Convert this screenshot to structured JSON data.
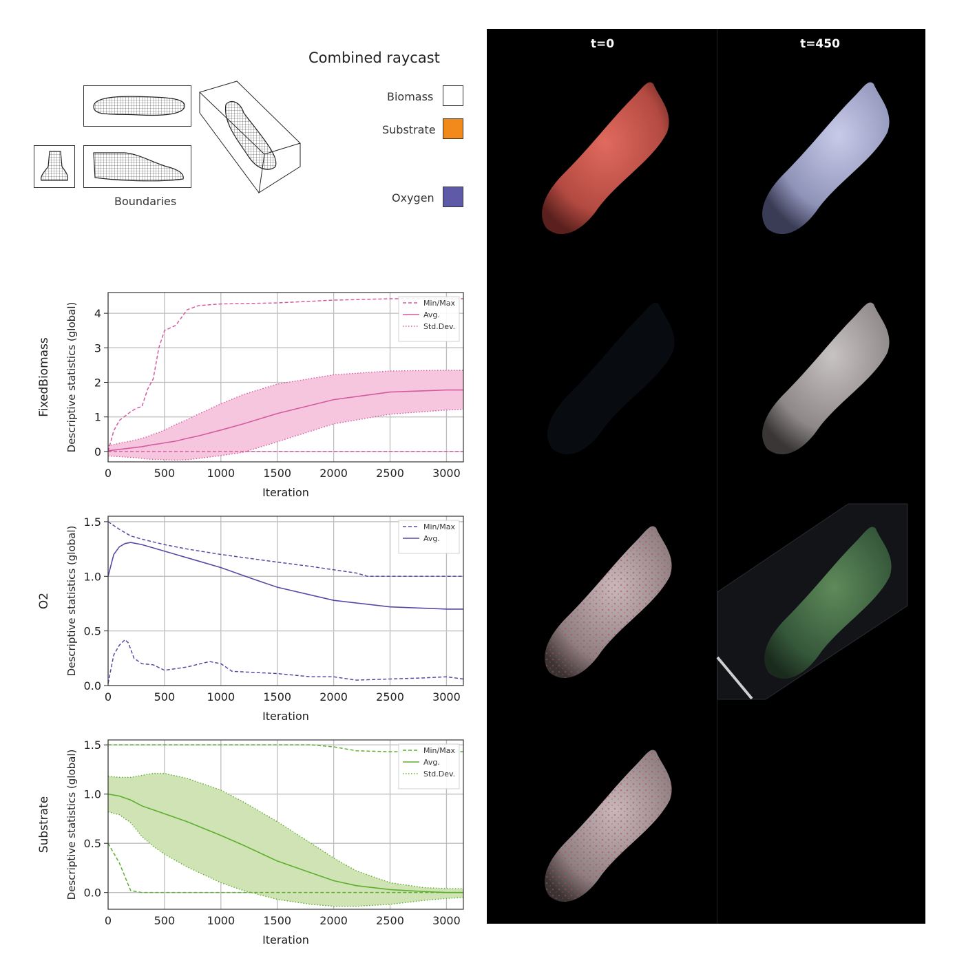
{
  "raycast": {
    "title": "Combined raycast",
    "legend": [
      {
        "label": "Biomass",
        "color": "#ffffff"
      },
      {
        "label": "Substrate",
        "color": "#f28a1b"
      },
      {
        "label": "Oxygen",
        "color": "#5f5aa8"
      }
    ]
  },
  "boundaries": {
    "label": "Boundaries"
  },
  "render_columns": [
    "t=0",
    "t=450"
  ],
  "chart_data": [
    {
      "type": "line",
      "name": "biomass",
      "title": "FixedBiomass",
      "ylabel": "Descriptive statistics (global)",
      "xlabel": "Iteration",
      "xlim": [
        0,
        3150
      ],
      "ylim": [
        -0.3,
        4.6
      ],
      "xticks": [
        0,
        500,
        1000,
        1500,
        2000,
        2500,
        3000
      ],
      "yticks": [
        0,
        1,
        2,
        3,
        4
      ],
      "yticklabels": [
        "0",
        "1",
        "2",
        "3",
        "4"
      ],
      "color": "#d45aa0",
      "fill": "#f6c6de",
      "grid": true,
      "legend_position": "top-right",
      "legend": [
        "Min/Max",
        "Avg.",
        "Std.Dev."
      ],
      "x": [
        0,
        50,
        100,
        200,
        250,
        300,
        350,
        400,
        450,
        500,
        600,
        700,
        800,
        1000,
        1200,
        1500,
        2000,
        2500,
        3000,
        3150
      ],
      "max": [
        0.0,
        0.6,
        0.9,
        1.15,
        1.25,
        1.3,
        1.8,
        2.1,
        3.0,
        3.5,
        3.65,
        4.1,
        4.22,
        4.27,
        4.28,
        4.3,
        4.38,
        4.42,
        4.42,
        4.42
      ],
      "min": [
        0.0,
        0.0,
        0.0,
        0.0,
        0.0,
        0.0,
        0.0,
        0.0,
        0.0,
        0.0,
        0.0,
        0.0,
        0.0,
        0.0,
        0.0,
        0.0,
        0.0,
        0.0,
        0.0,
        0.0
      ],
      "avg": [
        0.02,
        0.04,
        0.06,
        0.1,
        0.12,
        0.14,
        0.17,
        0.2,
        0.22,
        0.25,
        0.3,
        0.38,
        0.45,
        0.62,
        0.8,
        1.1,
        1.5,
        1.72,
        1.78,
        1.78
      ],
      "std_upper": [
        0.17,
        0.2,
        0.24,
        0.3,
        0.34,
        0.38,
        0.43,
        0.5,
        0.55,
        0.62,
        0.78,
        0.92,
        1.08,
        1.38,
        1.65,
        1.95,
        2.22,
        2.33,
        2.35,
        2.35
      ],
      "std_lower": [
        -0.13,
        -0.14,
        -0.15,
        -0.17,
        -0.18,
        -0.2,
        -0.22,
        -0.23,
        -0.23,
        -0.24,
        -0.25,
        -0.24,
        -0.2,
        -0.12,
        -0.02,
        0.28,
        0.8,
        1.08,
        1.2,
        1.22
      ]
    },
    {
      "type": "line",
      "name": "oxygen",
      "title": "O2",
      "ylabel": "Descriptive statistics (global)",
      "xlabel": "Iteration",
      "xlim": [
        0,
        3150
      ],
      "ylim": [
        0,
        1.55
      ],
      "xticks": [
        0,
        500,
        1000,
        1500,
        2000,
        2500,
        3000
      ],
      "yticks": [
        0,
        0.5,
        1.0,
        1.5
      ],
      "yticklabels": [
        "0.0",
        "0.5",
        "1.0",
        "1.5"
      ],
      "color": "#5a47a5",
      "grid": true,
      "legend_position": "top-right",
      "legend": [
        "Min/Max",
        "Avg."
      ],
      "x_max": [
        0,
        100,
        150,
        200,
        300,
        500,
        700,
        1000,
        1500,
        1800,
        2000,
        2200,
        2300,
        2500,
        3000,
        3150
      ],
      "max": [
        1.5,
        1.43,
        1.4,
        1.37,
        1.34,
        1.29,
        1.25,
        1.2,
        1.13,
        1.09,
        1.06,
        1.03,
        1.0,
        1.0,
        1.0,
        1.0
      ],
      "x_min": [
        0,
        50,
        100,
        150,
        180,
        230,
        300,
        400,
        500,
        700,
        900,
        1000,
        1100,
        1300,
        1500,
        1800,
        2000,
        2200,
        2500,
        2800,
        3000,
        3150
      ],
      "min": [
        0.02,
        0.28,
        0.37,
        0.42,
        0.39,
        0.25,
        0.2,
        0.19,
        0.14,
        0.17,
        0.22,
        0.2,
        0.13,
        0.12,
        0.11,
        0.08,
        0.08,
        0.05,
        0.06,
        0.07,
        0.08,
        0.06
      ],
      "x_avg": [
        0,
        50,
        100,
        150,
        200,
        300,
        500,
        800,
        1000,
        1300,
        1500,
        2000,
        2500,
        3000,
        3150
      ],
      "avg": [
        1.0,
        1.2,
        1.27,
        1.3,
        1.31,
        1.29,
        1.23,
        1.14,
        1.08,
        0.97,
        0.9,
        0.78,
        0.72,
        0.7,
        0.7
      ]
    },
    {
      "type": "line",
      "name": "substrate",
      "title": "Substrate",
      "ylabel": "Descriptive statistics (global)",
      "xlabel": "Iteration",
      "xlim": [
        0,
        3150
      ],
      "ylim": [
        -0.17,
        1.55
      ],
      "xticks": [
        0,
        500,
        1000,
        1500,
        2000,
        2500,
        3000
      ],
      "yticks": [
        0,
        0.5,
        1.0,
        1.5
      ],
      "yticklabels": [
        "0.0",
        "0.5",
        "1.0",
        "1.5"
      ],
      "color": "#5cae2e",
      "fill": "#cfe3b4",
      "grid": true,
      "legend_position": "top-right",
      "legend": [
        "Min/Max",
        "Avg.",
        "Std.Dev."
      ],
      "x": [
        0,
        100,
        200,
        300,
        400,
        500,
        700,
        1000,
        1200,
        1500,
        1800,
        2000,
        2200,
        2500,
        2800,
        3000,
        3150
      ],
      "max": [
        1.5,
        1.5,
        1.5,
        1.5,
        1.5,
        1.5,
        1.5,
        1.5,
        1.5,
        1.5,
        1.5,
        1.48,
        1.44,
        1.43,
        1.43,
        1.43,
        1.43
      ],
      "min": [
        0.5,
        0.3,
        0.02,
        0.0,
        0.0,
        0.0,
        0.0,
        0.0,
        0.0,
        0.0,
        0.0,
        0.0,
        0.0,
        0.0,
        0.0,
        0.0,
        0.0
      ],
      "avg": [
        1.0,
        0.98,
        0.94,
        0.88,
        0.84,
        0.8,
        0.72,
        0.58,
        0.48,
        0.32,
        0.2,
        0.12,
        0.07,
        0.03,
        0.01,
        0.0,
        0.0
      ],
      "std_upper": [
        1.18,
        1.17,
        1.17,
        1.19,
        1.21,
        1.21,
        1.16,
        1.04,
        0.92,
        0.72,
        0.5,
        0.35,
        0.22,
        0.1,
        0.05,
        0.04,
        0.04
      ],
      "std_lower": [
        0.82,
        0.79,
        0.71,
        0.57,
        0.47,
        0.39,
        0.26,
        0.1,
        0.02,
        -0.07,
        -0.12,
        -0.14,
        -0.14,
        -0.12,
        -0.08,
        -0.06,
        -0.05
      ]
    }
  ]
}
